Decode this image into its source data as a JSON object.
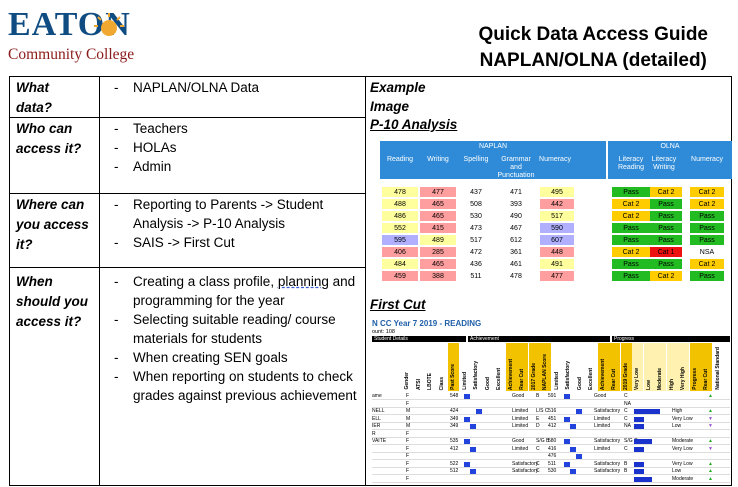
{
  "header": {
    "logo_word": "EATON",
    "logo_subtitle": "Community College",
    "title_line1": "Quick Data Access Guide",
    "title_line2": "NAPLAN/OLNA (detailed)",
    "colors": {
      "logo_blue": "#0f4c81",
      "logo_red": "#8b1b1b",
      "sun": "#f0a830"
    }
  },
  "rows": [
    {
      "question": [
        "What",
        "data?"
      ],
      "answers": [
        "NAPLAN/OLNA Data"
      ]
    },
    {
      "question": [
        "Who can",
        "access it?"
      ],
      "answers": [
        "Teachers",
        "HOLAs",
        "Admin"
      ]
    },
    {
      "question": [
        "Where can",
        "you access",
        "it?"
      ],
      "answers": [
        "Reporting to Parents -> Student Analysis -> P-10 Analysis",
        "SAIS -> First Cut"
      ]
    },
    {
      "question": [
        "When",
        "should you",
        "access it?"
      ],
      "answers": [
        "Creating a class profile, planning and programming for the year",
        "Selecting suitable reading/ course materials for students",
        "When creating SEN goals",
        "When reporting on students to check grades against previous achievement"
      ]
    }
  ],
  "example": {
    "title_line1": "Example",
    "title_line2": "Image",
    "p10_title": "P-10 Analysis",
    "first_cut_title": "First Cut"
  },
  "p10_table": {
    "groups": [
      "NAPLAN",
      "OLNA"
    ],
    "headers": [
      "Reading",
      "Writing",
      "Spelling",
      "Grammar and Punctuation",
      "Numeracy",
      "Literacy Reading",
      "Literacy Writing",
      "Numeracy"
    ],
    "rows": [
      {
        "cells": [
          "478",
          "477",
          "437",
          "471",
          "495",
          "Pass",
          "Cat 2",
          "Cat 2"
        ],
        "colors": [
          "#ffff9e",
          "#ff9e9e",
          "#ffffff",
          "#ffffff",
          "#ffff9e",
          "#22bb22",
          "#ffcc00",
          "#ffcc00"
        ]
      },
      {
        "cells": [
          "488",
          "465",
          "508",
          "393",
          "442",
          "Cat 2",
          "Pass",
          "Cat 2"
        ],
        "colors": [
          "#ffff9e",
          "#ff9e9e",
          "#ffffff",
          "#ffffff",
          "#ff9e9e",
          "#ffcc00",
          "#22bb22",
          "#ffcc00"
        ]
      },
      {
        "cells": [
          "486",
          "465",
          "530",
          "490",
          "517",
          "Cat 2",
          "Pass",
          "Pass"
        ],
        "colors": [
          "#ffff9e",
          "#ff9e9e",
          "#ffffff",
          "#ffffff",
          "#ffff9e",
          "#ffcc00",
          "#22bb22",
          "#22bb22"
        ]
      },
      {
        "cells": [
          "552",
          "415",
          "473",
          "467",
          "590",
          "Pass",
          "Pass",
          "Pass"
        ],
        "colors": [
          "#ffff9e",
          "#ff9e9e",
          "#ffffff",
          "#ffffff",
          "#b0b0ff",
          "#22bb22",
          "#22bb22",
          "#22bb22"
        ]
      },
      {
        "cells": [
          "595",
          "489",
          "517",
          "612",
          "607",
          "Pass",
          "Pass",
          "Pass"
        ],
        "colors": [
          "#b0b0ff",
          "#ffff9e",
          "#ffffff",
          "#ffffff",
          "#b0b0ff",
          "#22bb22",
          "#22bb22",
          "#22bb22"
        ]
      },
      {
        "cells": [
          "406",
          "285",
          "472",
          "361",
          "448",
          "Cat 2",
          "Cat 1",
          "NSA"
        ],
        "colors": [
          "#ff9e9e",
          "#ff9e9e",
          "#ffffff",
          "#ffffff",
          "#ff9e9e",
          "#ffcc00",
          "#ee1111",
          "#ffffff"
        ]
      },
      {
        "cells": [
          "484",
          "465",
          "436",
          "461",
          "491",
          "Pass",
          "Pass",
          "Cat 2"
        ],
        "colors": [
          "#ffff9e",
          "#ff9e9e",
          "#ffffff",
          "#ffffff",
          "#ffff9e",
          "#22bb22",
          "#22bb22",
          "#ffcc00"
        ]
      },
      {
        "cells": [
          "459",
          "388",
          "511",
          "478",
          "477",
          "Pass",
          "Cat 2",
          "Pass"
        ],
        "colors": [
          "#ff9e9e",
          "#ff9e9e",
          "#ffffff",
          "#ffffff",
          "#ff9e9e",
          "#22bb22",
          "#ffcc00",
          "#22bb22"
        ]
      }
    ]
  },
  "first_cut": {
    "report_title": "N CC Year 7 2019 - READING",
    "count": "ount: 108",
    "sections": [
      "Student Details",
      "Achievement",
      "Progress"
    ],
    "column_headers": [
      "Gender",
      "ATSI",
      "LBOTE",
      "Class",
      "Past Score",
      "Limited",
      "Satisfactory",
      "Good",
      "Excellent",
      "Achievement",
      "Rear Cut",
      "2017 Grade",
      "NAPLAN Score",
      "Limited",
      "Satisfactory",
      "Good",
      "Excellent",
      "Achievement",
      "Rear Cut",
      "2019 Grade",
      "Very Low",
      "Low",
      "Moderate",
      "High",
      "Very High",
      "Progress",
      "Rear Cut",
      "National Standard"
    ],
    "name_fragments": [
      "ame",
      "",
      "NELL",
      "ELL",
      "IER",
      "R",
      "VAITE",
      "",
      "",
      "",
      "",
      ""
    ],
    "rows": [
      {
        "gender": "F",
        "score": "548",
        "ach": "Good",
        "grade": "B",
        "nscore": "591",
        "ach2": "Good",
        "grade2": "C",
        "progress": "",
        "marker": "up"
      },
      {
        "gender": "F",
        "score": "",
        "ach": "",
        "grade": "",
        "nscore": "",
        "ach2": "",
        "grade2": "NA",
        "progress": "",
        "marker": ""
      },
      {
        "gender": "M",
        "score": "424",
        "ach": "Limited",
        "grade": "L/S C",
        "nscore": "516",
        "ach2": "Satisfactory",
        "grade2": "C",
        "progress": "High",
        "marker": "up"
      },
      {
        "gender": "M",
        "score": "349",
        "ach": "Limited",
        "grade": "E",
        "nscore": "451",
        "ach2": "Limited",
        "grade2": "C",
        "progress": "Very Low",
        "marker": "down"
      },
      {
        "gender": "M",
        "score": "349",
        "ach": "Limited",
        "grade": "D",
        "nscore": "412",
        "ach2": "Limited",
        "grade2": "NA",
        "progress": "Low",
        "marker": "down"
      },
      {
        "gender": "F",
        "score": "",
        "ach": "",
        "grade": "",
        "nscore": "",
        "ach2": "",
        "grade2": "",
        "progress": "",
        "marker": ""
      },
      {
        "gender": "F",
        "score": "535",
        "ach": "Good",
        "grade": "S/G B",
        "nscore": "580",
        "ach2": "Satisfactory",
        "grade2": "S/G C",
        "progress": "Moderate",
        "marker": "up"
      },
      {
        "gender": "F",
        "score": "412",
        "ach": "Limited",
        "grade": "C",
        "nscore": "416",
        "ach2": "Limited",
        "grade2": "C",
        "progress": "Very Low",
        "marker": "down"
      },
      {
        "gender": "F",
        "score": "",
        "ach": "",
        "grade": "",
        "nscore": "476",
        "ach2": "",
        "grade2": "",
        "progress": "",
        "marker": ""
      },
      {
        "gender": "F",
        "score": "522",
        "ach": "Satisfactory",
        "grade": "C",
        "nscore": "511",
        "ach2": "Satisfactory",
        "grade2": "B",
        "progress": "Very Low",
        "marker": "up"
      },
      {
        "gender": "F",
        "score": "512",
        "ach": "Satisfactory",
        "grade": "C",
        "nscore": "530",
        "ach2": "Satisfactory",
        "grade2": "B",
        "progress": "Low",
        "marker": "up"
      },
      {
        "gender": "F",
        "score": "",
        "ach": "",
        "grade": "",
        "nscore": "",
        "ach2": "",
        "grade2": "",
        "progress": "Moderate",
        "marker": "up"
      }
    ]
  }
}
